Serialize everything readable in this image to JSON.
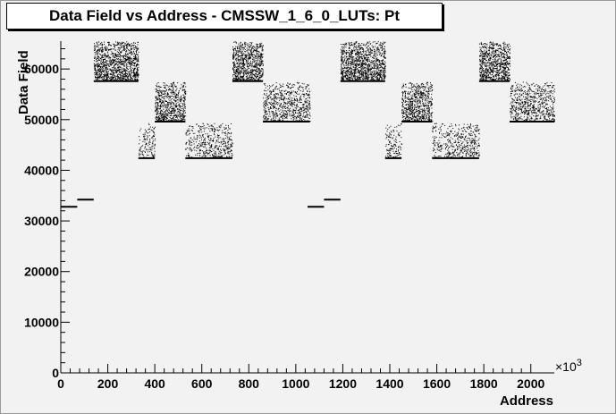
{
  "title": "Data Field vs Address - CMSSW_1_6_0_LUTs: Pt",
  "chart_data": {
    "type": "scatter",
    "title": "Data Field vs Address - CMSSW_1_6_0_LUTs: Pt",
    "xlabel": "Address",
    "ylabel": "Data Field",
    "x_multiplier": "×10",
    "x_multiplier_exp": "3",
    "xlim": [
      0,
      2100
    ],
    "ylim": [
      0,
      65500
    ],
    "xticks": [
      0,
      200,
      400,
      600,
      800,
      1000,
      1200,
      1400,
      1600,
      1800,
      2000
    ],
    "xtick_labels": [
      "0",
      "200",
      "400",
      "600",
      "800",
      "1000",
      "1200",
      "1400",
      "1600",
      "1800",
      "2000"
    ],
    "yticks": [
      0,
      10000,
      20000,
      30000,
      40000,
      50000,
      60000
    ],
    "ytick_labels": [
      "0",
      "10000",
      "20000",
      "30000",
      "40000",
      "50000",
      "60000"
    ],
    "grid": false,
    "segments": [
      {
        "x": [
          0,
          70
        ],
        "y": 32800
      },
      {
        "x": [
          70,
          140
        ],
        "y": 34200
      },
      {
        "x": [
          1050,
          1120
        ],
        "y": 32800
      },
      {
        "x": [
          1120,
          1190
        ],
        "y": 34200
      },
      {
        "x": [
          140,
          330
        ],
        "y": 57600
      },
      {
        "x": [
          330,
          400
        ],
        "y": 42400
      },
      {
        "x": [
          400,
          530
        ],
        "y": 49600
      },
      {
        "x": [
          530,
          600
        ],
        "y": 42400
      },
      {
        "x": [
          600,
          730
        ],
        "y": 42400
      },
      {
        "x": [
          730,
          860
        ],
        "y": 57600
      },
      {
        "x": [
          860,
          1060
        ],
        "y": 49600
      },
      {
        "x": [
          1190,
          1380
        ],
        "y": 57600
      },
      {
        "x": [
          1380,
          1450
        ],
        "y": 42400
      },
      {
        "x": [
          1450,
          1580
        ],
        "y": 49600
      },
      {
        "x": [
          1580,
          1650
        ],
        "y": 42400
      },
      {
        "x": [
          1650,
          1780
        ],
        "y": 42400
      },
      {
        "x": [
          1780,
          1910
        ],
        "y": 57600
      },
      {
        "x": [
          1910,
          2100
        ],
        "y": 49600
      }
    ],
    "point_bands": [
      {
        "x": [
          140,
          330
        ],
        "y": [
          57600,
          65400
        ],
        "density": 0.55
      },
      {
        "x": [
          330,
          400
        ],
        "y": [
          42400,
          49300
        ],
        "density": 0.18
      },
      {
        "x": [
          400,
          530
        ],
        "y": [
          49600,
          57400
        ],
        "density": 0.45
      },
      {
        "x": [
          530,
          600
        ],
        "y": [
          42400,
          49300
        ],
        "density": 0.18
      },
      {
        "x": [
          600,
          730
        ],
        "y": [
          42400,
          49300
        ],
        "density": 0.25
      },
      {
        "x": [
          730,
          860
        ],
        "y": [
          57600,
          65400
        ],
        "density": 0.55
      },
      {
        "x": [
          860,
          1060
        ],
        "y": [
          49600,
          57400
        ],
        "density": 0.3
      },
      {
        "x": [
          1190,
          1380
        ],
        "y": [
          57600,
          65400
        ],
        "density": 0.55
      },
      {
        "x": [
          1380,
          1450
        ],
        "y": [
          42400,
          49300
        ],
        "density": 0.18
      },
      {
        "x": [
          1450,
          1580
        ],
        "y": [
          49600,
          57400
        ],
        "density": 0.45
      },
      {
        "x": [
          1580,
          1650
        ],
        "y": [
          42400,
          49300
        ],
        "density": 0.18
      },
      {
        "x": [
          1650,
          1780
        ],
        "y": [
          42400,
          49300
        ],
        "density": 0.25
      },
      {
        "x": [
          1780,
          1910
        ],
        "y": [
          57600,
          65400
        ],
        "density": 0.55
      },
      {
        "x": [
          1910,
          2100
        ],
        "y": [
          49600,
          57400
        ],
        "density": 0.3
      }
    ]
  },
  "colors": {
    "background": "#f2f2f2",
    "axis": "#000000",
    "points": "#000000",
    "title_box": "#ffffff"
  }
}
